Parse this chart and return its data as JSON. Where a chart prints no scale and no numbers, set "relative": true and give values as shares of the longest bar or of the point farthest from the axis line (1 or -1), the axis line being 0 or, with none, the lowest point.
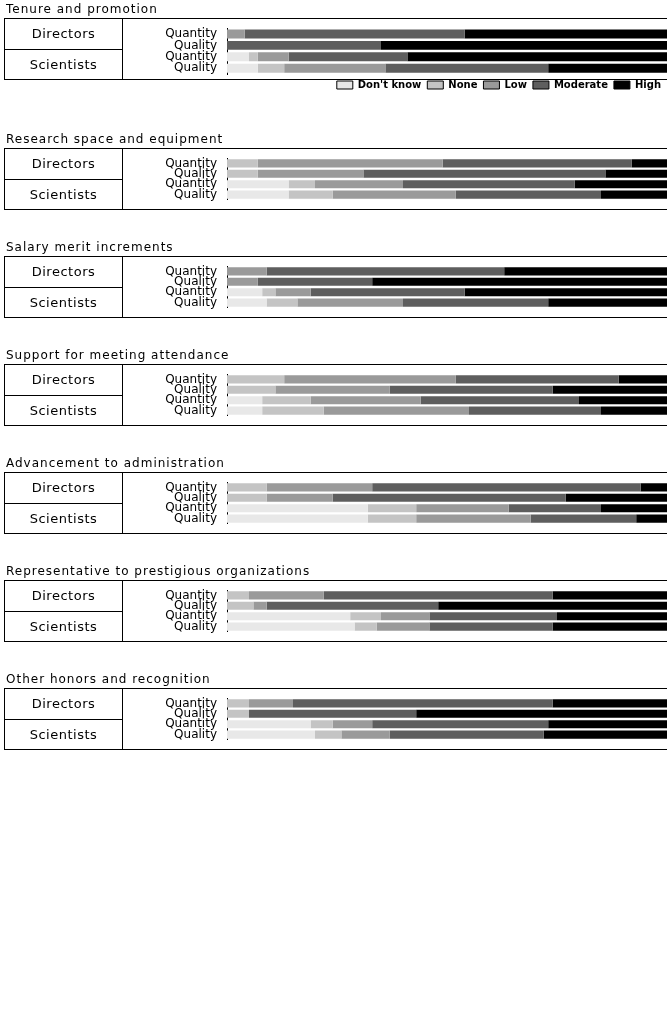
{
  "chart_data": [
    {
      "type": "bar",
      "title": "Tenure and promotion",
      "orientation": "horizontal",
      "stacked": true,
      "relative": true,
      "legend": "bottom right",
      "annotations": [
        "Directors",
        "Scientists"
      ],
      "categories": [
        "Quantity",
        "Quality",
        "Quantity",
        "Quality"
      ],
      "series": [
        {
          "name": "Don't know",
          "color": "#e8e8e8",
          "values": [
            0,
            0,
            0.05,
            0.07
          ]
        },
        {
          "name": "None",
          "color": "#c4c4c4",
          "values": [
            0,
            0,
            0.02,
            0.06
          ]
        },
        {
          "name": "Low",
          "color": "#9a9a9a",
          "values": [
            0.04,
            0,
            0.07,
            0.23
          ]
        },
        {
          "name": "Moderate",
          "color": "#5e5e5e",
          "values": [
            0.5,
            0.35,
            0.27,
            0.37
          ]
        },
        {
          "name": "High",
          "color": "#000000",
          "values": [
            0.46,
            0.65,
            0.59,
            0.27
          ]
        }
      ]
    },
    {
      "type": "bar",
      "title": "Research space and equipment",
      "orientation": "horizontal",
      "stacked": true,
      "relative": true,
      "annotations": [
        "Directors",
        "Scientists"
      ],
      "categories": [
        "Quantity",
        "Quality",
        "Quantity",
        "Quality"
      ],
      "series": [
        {
          "color": "#e8e8e8",
          "values": [
            0,
            0,
            0.14,
            0.14
          ]
        },
        {
          "color": "#c4c4c4",
          "values": [
            0.07,
            0.07,
            0.06,
            0.1
          ]
        },
        {
          "color": "#9a9a9a",
          "values": [
            0.42,
            0.24,
            0.2,
            0.28
          ]
        },
        {
          "color": "#5e5e5e",
          "values": [
            0.43,
            0.55,
            0.39,
            0.33
          ]
        },
        {
          "color": "#000000",
          "values": [
            0.08,
            0.14,
            0.21,
            0.15
          ]
        }
      ]
    },
    {
      "type": "bar",
      "title": "Salary merit increments",
      "orientation": "horizontal",
      "stacked": true,
      "relative": true,
      "annotations": [
        "Directors",
        "Scientists"
      ],
      "categories": [
        "Quantity",
        "Quality",
        "Quantity",
        "Quality"
      ],
      "series": [
        {
          "color": "#e8e8e8",
          "values": [
            0,
            0,
            0.08,
            0.09
          ]
        },
        {
          "color": "#c4c4c4",
          "values": [
            0,
            0,
            0.03,
            0.07
          ]
        },
        {
          "color": "#9a9a9a",
          "values": [
            0.09,
            0.07,
            0.08,
            0.24
          ]
        },
        {
          "color": "#5e5e5e",
          "values": [
            0.54,
            0.26,
            0.35,
            0.33
          ]
        },
        {
          "color": "#000000",
          "values": [
            0.37,
            0.67,
            0.46,
            0.27
          ]
        }
      ]
    },
    {
      "type": "bar",
      "title": "Support for meeting attendance",
      "orientation": "horizontal",
      "stacked": true,
      "relative": true,
      "annotations": [
        "Directors",
        "Scientists"
      ],
      "categories": [
        "Quantity",
        "Quality",
        "Quantity",
        "Quality"
      ],
      "series": [
        {
          "color": "#e8e8e8",
          "values": [
            0,
            0,
            0.08,
            0.08
          ]
        },
        {
          "color": "#c4c4c4",
          "values": [
            0.13,
            0.11,
            0.11,
            0.14
          ]
        },
        {
          "color": "#9a9a9a",
          "values": [
            0.39,
            0.26,
            0.25,
            0.33
          ]
        },
        {
          "color": "#5e5e5e",
          "values": [
            0.37,
            0.37,
            0.36,
            0.3
          ]
        },
        {
          "color": "#000000",
          "values": [
            0.11,
            0.26,
            0.2,
            0.15
          ]
        }
      ]
    },
    {
      "type": "bar",
      "title": "Advancement to administration",
      "orientation": "horizontal",
      "stacked": true,
      "relative": true,
      "annotations": [
        "Directors",
        "Scientists"
      ],
      "categories": [
        "Quantity",
        "Quality",
        "Quantity",
        "Quality"
      ],
      "series": [
        {
          "color": "#e8e8e8",
          "values": [
            0,
            0,
            0.32,
            0.32
          ]
        },
        {
          "color": "#c4c4c4",
          "values": [
            0.09,
            0.09,
            0.11,
            0.11
          ]
        },
        {
          "color": "#9a9a9a",
          "values": [
            0.24,
            0.15,
            0.21,
            0.26
          ]
        },
        {
          "color": "#5e5e5e",
          "values": [
            0.61,
            0.53,
            0.21,
            0.24
          ]
        },
        {
          "color": "#000000",
          "values": [
            0.06,
            0.23,
            0.15,
            0.07
          ]
        }
      ]
    },
    {
      "type": "bar",
      "title": "Representative to prestigious organizations",
      "orientation": "horizontal",
      "stacked": true,
      "relative": true,
      "annotations": [
        "Directors",
        "Scientists"
      ],
      "categories": [
        "Quantity",
        "Quality",
        "Quantity",
        "Quality"
      ],
      "series": [
        {
          "color": "#e8e8e8",
          "values": [
            0,
            0,
            0.28,
            0.29
          ]
        },
        {
          "color": "#c4c4c4",
          "values": [
            0.05,
            0.06,
            0.07,
            0.05
          ]
        },
        {
          "color": "#9a9a9a",
          "values": [
            0.17,
            0.03,
            0.11,
            0.12
          ]
        },
        {
          "color": "#5e5e5e",
          "values": [
            0.52,
            0.39,
            0.29,
            0.28
          ]
        },
        {
          "color": "#000000",
          "values": [
            0.26,
            0.52,
            0.25,
            0.26
          ]
        }
      ]
    },
    {
      "type": "bar",
      "title": "Other honors and recognition",
      "orientation": "horizontal",
      "stacked": true,
      "relative": true,
      "annotations": [
        "Directors",
        "Scientists"
      ],
      "categories": [
        "Quantity",
        "Quality",
        "Quantity",
        "Quality"
      ],
      "series": [
        {
          "color": "#e8e8e8",
          "values": [
            0,
            0,
            0.19,
            0.2
          ]
        },
        {
          "color": "#c4c4c4",
          "values": [
            0.05,
            0.05,
            0.05,
            0.06
          ]
        },
        {
          "color": "#9a9a9a",
          "values": [
            0.1,
            0,
            0.09,
            0.11
          ]
        },
        {
          "color": "#5e5e5e",
          "values": [
            0.59,
            0.38,
            0.4,
            0.35
          ]
        },
        {
          "color": "#000000",
          "values": [
            0.26,
            0.57,
            0.27,
            0.28
          ]
        }
      ]
    }
  ]
}
